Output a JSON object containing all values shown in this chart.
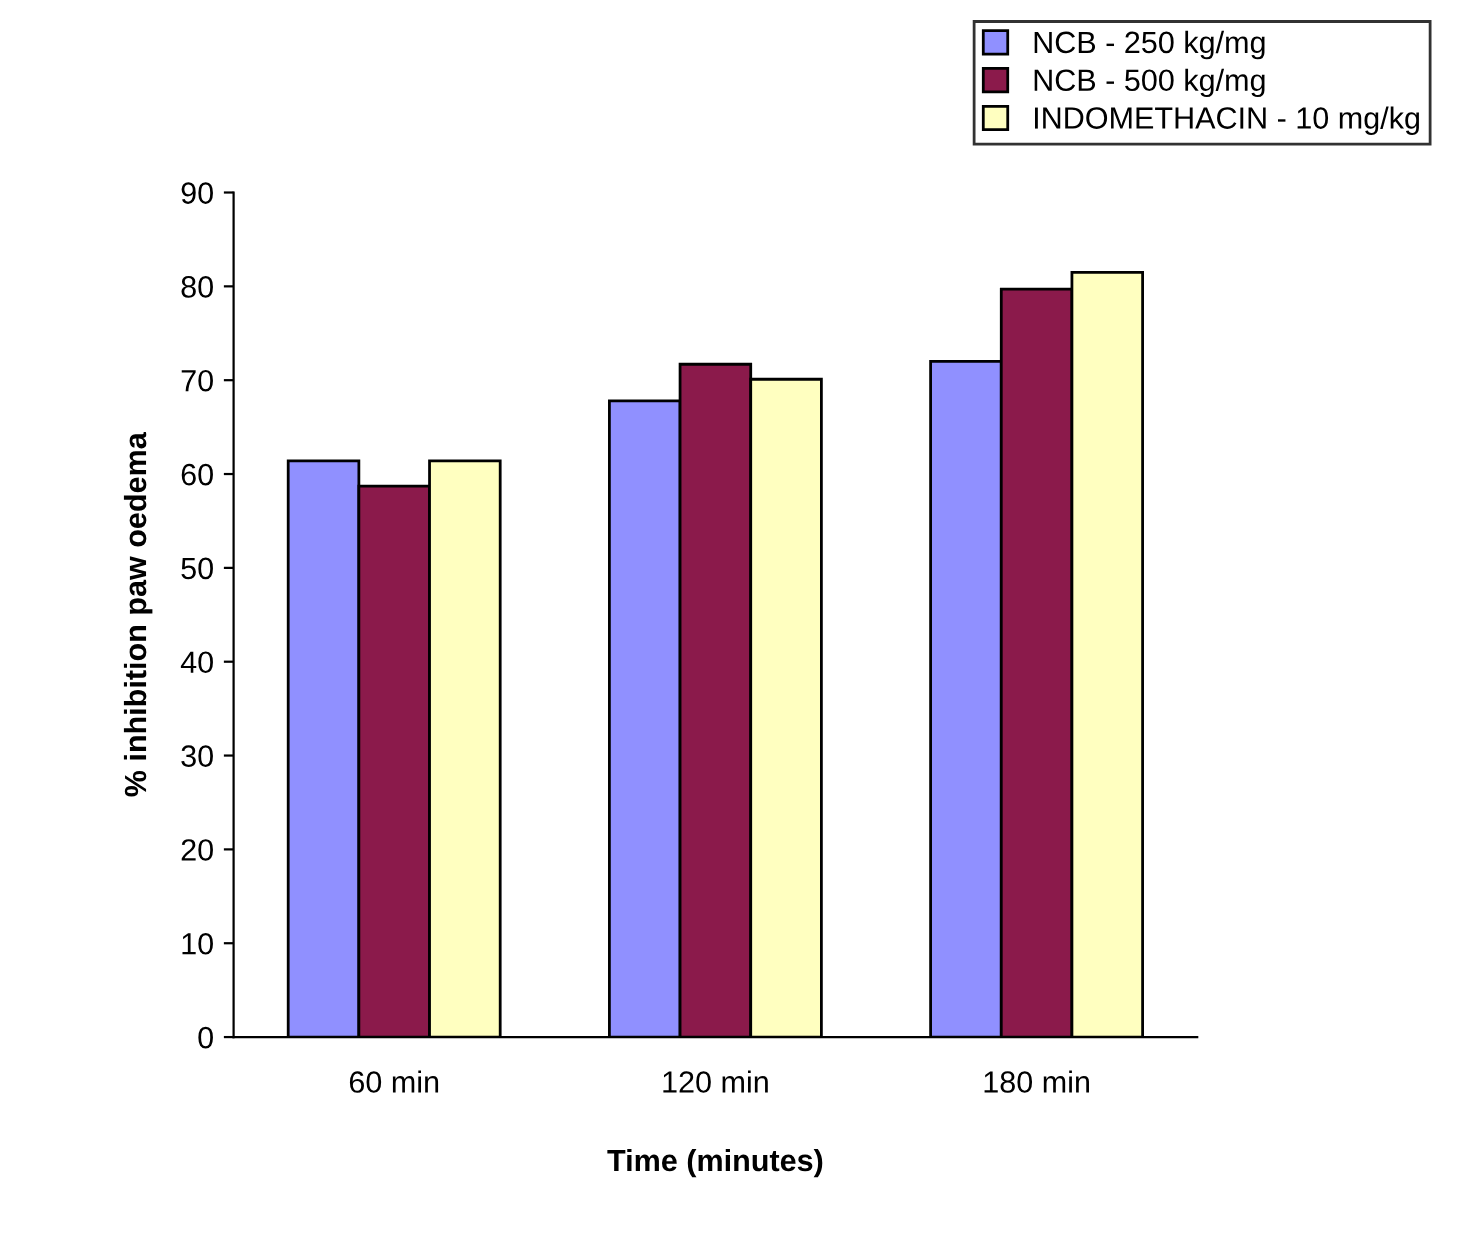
{
  "chart_data": {
    "type": "bar",
    "xlabel": "Time (minutes)",
    "ylabel": "% inhibition paw oedema",
    "categories": [
      "60 min",
      "120 min",
      "180 min"
    ],
    "series": [
      {
        "name": "NCB - 250 kg/mg",
        "color": "#9090ff",
        "values": [
          61.4,
          67.8,
          72.0
        ]
      },
      {
        "name": "NCB - 500 kg/mg",
        "color": "#8b1a4b",
        "values": [
          58.7,
          71.7,
          79.7
        ]
      },
      {
        "name": "INDOMETHACIN - 10 mg/kg",
        "color": "#ffffc0",
        "values": [
          61.4,
          70.1,
          81.5
        ]
      }
    ],
    "ylim": [
      0,
      90
    ],
    "yticks": [
      0,
      10,
      20,
      30,
      40,
      50,
      60,
      70,
      80,
      90
    ],
    "grid": false,
    "legend": "top right"
  }
}
